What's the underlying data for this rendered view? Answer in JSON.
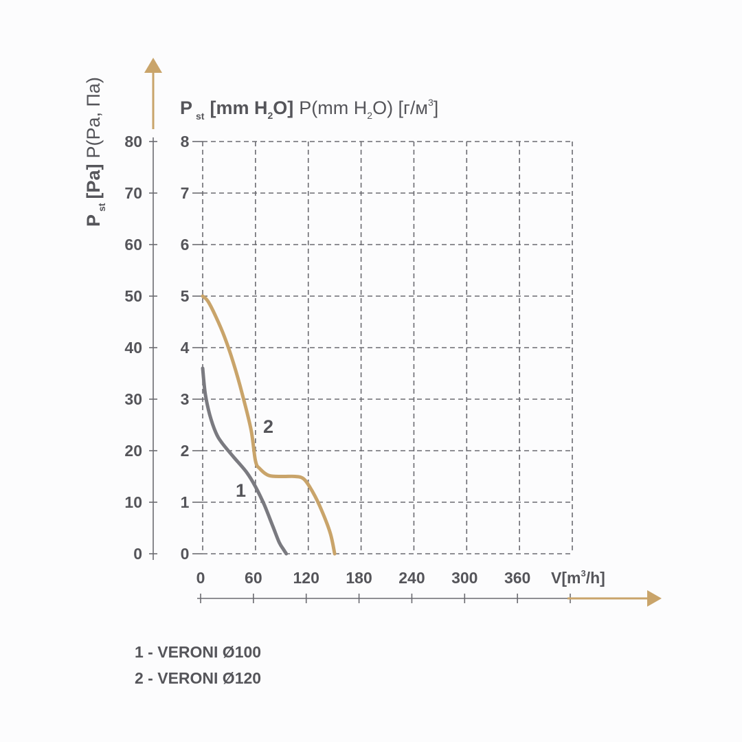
{
  "colors": {
    "text": "#55555a",
    "grid": "#6a6a70",
    "accent": "#c9a46a",
    "series1": "#7a7a80",
    "series2": "#c9a46a"
  },
  "chart_data": {
    "type": "line",
    "xlabel": "V[m³/h]",
    "xlabel_main": "V[m",
    "xlabel_sup": "3",
    "xlabel_tail": "/h]",
    "ylabel_left": "P st [Pa] P(Pa, Па)",
    "ylabel_left_parts": [
      "P",
      "st",
      "[Pa]",
      "P(Pa, Па)"
    ],
    "ylabel_right": "P st [mm H2O] P(mm H2O) [г/м3]",
    "ylabel_right_parts": [
      "P",
      "st",
      "[mm H",
      "2",
      "O]",
      "P(mm H",
      "2",
      "O) [г/м",
      "3",
      "]"
    ],
    "x_ticks": [
      0,
      60,
      120,
      180,
      240,
      300,
      360
    ],
    "x_grid": [
      0,
      60,
      120,
      180,
      240,
      300,
      360,
      420
    ],
    "xlim": [
      0,
      420
    ],
    "y_ticks_pa": [
      0,
      10,
      20,
      30,
      40,
      50,
      60,
      70,
      80
    ],
    "y_ticks_mm": [
      0,
      1,
      2,
      3,
      4,
      5,
      6,
      7,
      8
    ],
    "ylim": [
      0,
      80
    ],
    "grid": true,
    "series": [
      {
        "name": "1",
        "label": "1",
        "x": [
          0,
          3,
          8,
          15,
          22,
          35,
          50,
          60,
          70,
          80,
          87,
          92,
          95
        ],
        "y": [
          36,
          31,
          27,
          23.5,
          21.5,
          18.8,
          15.8,
          13,
          9.5,
          5.2,
          2.2,
          0.8,
          0
        ]
      },
      {
        "name": "2",
        "label": "2",
        "x": [
          0,
          6,
          15,
          25,
          35,
          45,
          55,
          60,
          65,
          75,
          90,
          105,
          115,
          125,
          135,
          145,
          150
        ],
        "y": [
          50,
          49,
          46,
          42,
          37,
          31,
          24,
          18,
          16.5,
          15.2,
          15,
          15,
          14.5,
          12,
          8.5,
          4,
          0
        ]
      }
    ]
  },
  "legend": {
    "items": [
      "1 - VERONI Ø100",
      "2 - VERONI Ø120"
    ]
  }
}
